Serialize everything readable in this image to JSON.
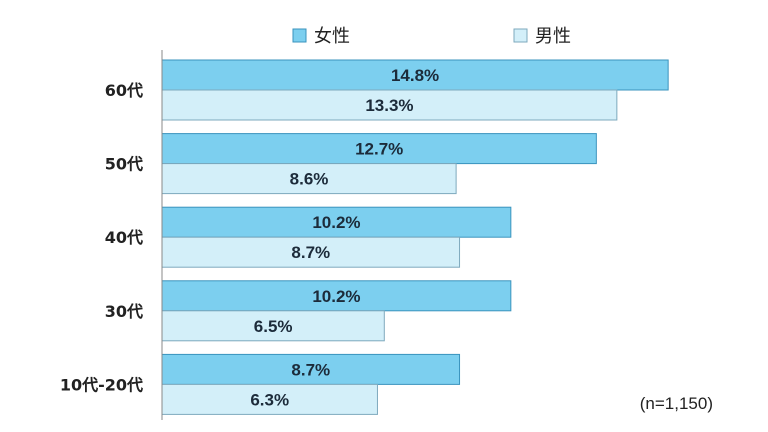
{
  "chart_data": {
    "type": "bar",
    "orientation": "horizontal",
    "categories": [
      "60代",
      "50代",
      "40代",
      "30代",
      "10代-20代"
    ],
    "series": [
      {
        "name": "女性",
        "values": [
          14.8,
          12.7,
          10.2,
          10.2,
          8.7
        ],
        "color": "#7ccfef",
        "border": "#3a93bd"
      },
      {
        "name": "男性",
        "values": [
          13.3,
          8.6,
          8.7,
          6.5,
          6.3
        ],
        "color": "#d3eff9",
        "border": "#7ea9bd"
      }
    ],
    "value_suffix": "%",
    "xlim": [
      0,
      15.0
    ],
    "grid": false,
    "legend_position": "top",
    "axis_color": "#888888",
    "note": "(n=1,150)"
  }
}
